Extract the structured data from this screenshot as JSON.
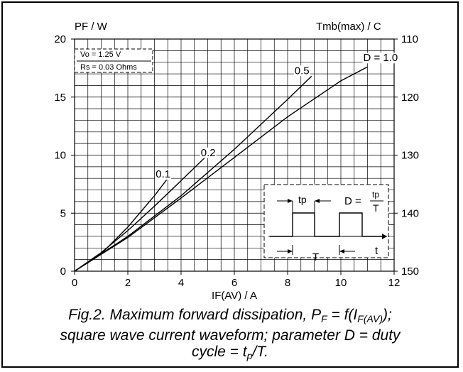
{
  "chart_data": {
    "type": "line",
    "xlabel": "IF(AV) / A",
    "ylabel": "PF / W",
    "y2label": "Tmb(max) / C",
    "xlim": [
      0,
      12
    ],
    "ylim": [
      0,
      20
    ],
    "y2lim": [
      150,
      110
    ],
    "xticks": [
      "0",
      "2",
      "4",
      "6",
      "8",
      "10",
      "12"
    ],
    "yticks": [
      "0",
      "5",
      "10",
      "15",
      "20"
    ],
    "y2ticks": [
      "150",
      "140",
      "130",
      "120",
      "110"
    ],
    "grid": true,
    "params_box": [
      "Vo = 1.25 V",
      "Rs = 0.03 Ohms"
    ],
    "series": [
      {
        "name": "0.1",
        "x": [
          0,
          1,
          2,
          3,
          3.5
        ],
        "y": [
          0,
          1.5,
          3.8,
          6.5,
          8.0
        ]
      },
      {
        "name": "0.2",
        "x": [
          0,
          1,
          2,
          3,
          4,
          4.9
        ],
        "y": [
          0,
          1.6,
          3.5,
          5.6,
          7.8,
          9.8
        ]
      },
      {
        "name": "0.5",
        "x": [
          0,
          2,
          4,
          6,
          8,
          8.9
        ],
        "y": [
          0,
          3.0,
          6.5,
          10.5,
          14.8,
          16.8
        ]
      },
      {
        "name": "D = 1.0",
        "x": [
          0,
          2,
          4,
          6,
          8,
          10,
          11
        ],
        "y": [
          0,
          2.9,
          6.3,
          9.8,
          13.3,
          16.4,
          17.6
        ]
      }
    ],
    "inset": {
      "tp_label": "tp",
      "t_label": "T",
      "time_label": "t",
      "formula_lhs": "D =",
      "formula_num": "tp",
      "formula_den": "T"
    }
  },
  "caption": {
    "line1_a": "Fig.2.  Maximum forward dissipation, P",
    "line1_sub": "F",
    "line1_b": " = f(I",
    "line1_sub2": "F(AV)",
    "line1_c": ");",
    "line2": "square wave current waveform; parameter D = duty",
    "line3_a": "cycle = t",
    "line3_sub": "p",
    "line3_b": "/T."
  }
}
